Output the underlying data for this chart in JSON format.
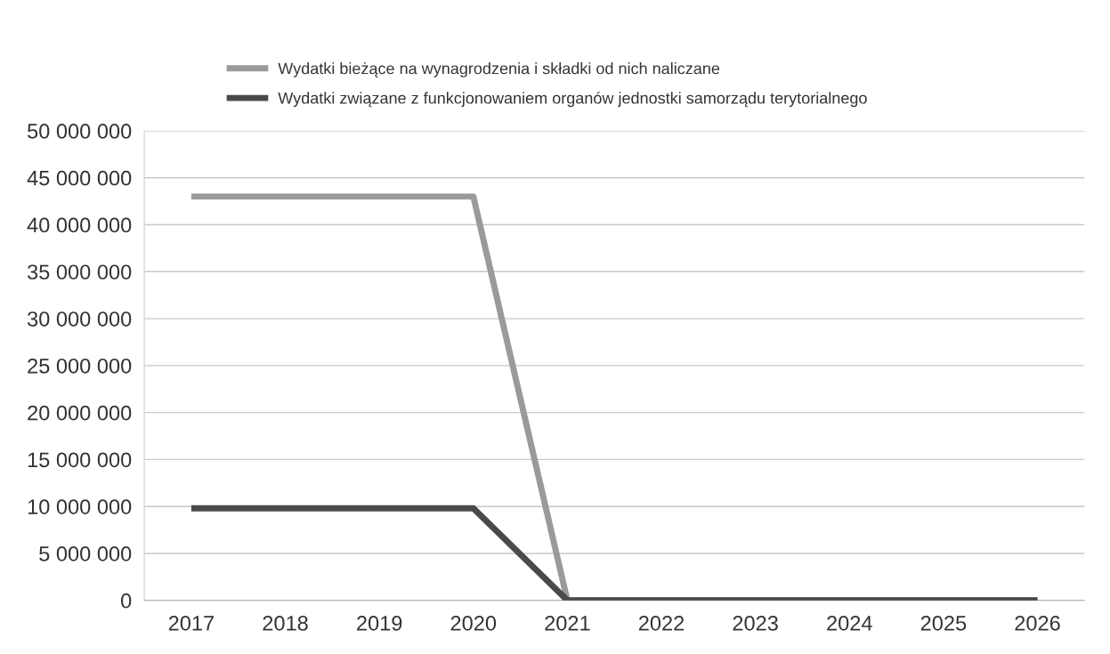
{
  "chart_data": {
    "type": "line",
    "categories": [
      "2017",
      "2018",
      "2019",
      "2020",
      "2021",
      "2022",
      "2023",
      "2024",
      "2025",
      "2026"
    ],
    "series": [
      {
        "name": "Wydatki bieżące na wynagrodzenia i składki od nich naliczane",
        "color": "#9a9a9a",
        "values": [
          43000000,
          43000000,
          43000000,
          43000000,
          0,
          0,
          0,
          0,
          0,
          0
        ]
      },
      {
        "name": "Wydatki związane z funkcjonowaniem organów jednostki samorządu terytorialnego",
        "color": "#4a4a4a",
        "values": [
          9800000,
          9800000,
          9800000,
          9800000,
          0,
          0,
          0,
          0,
          0,
          0
        ]
      }
    ],
    "ylim": [
      0,
      50000000
    ],
    "yticks": [
      {
        "value": 0,
        "label": "0"
      },
      {
        "value": 5000000,
        "label": "5 000 000"
      },
      {
        "value": 10000000,
        "label": "10 000 000"
      },
      {
        "value": 15000000,
        "label": "15 000 000"
      },
      {
        "value": 20000000,
        "label": "20 000 000"
      },
      {
        "value": 25000000,
        "label": "25 000 000"
      },
      {
        "value": 30000000,
        "label": "30 000 000"
      },
      {
        "value": 35000000,
        "label": "35 000 000"
      },
      {
        "value": 40000000,
        "label": "40 000 000"
      },
      {
        "value": 45000000,
        "label": "45 000 000"
      },
      {
        "value": 50000000,
        "label": "50 000 000"
      }
    ],
    "grid": "y",
    "legend": "top",
    "marker": "none",
    "line_style": "solid"
  }
}
